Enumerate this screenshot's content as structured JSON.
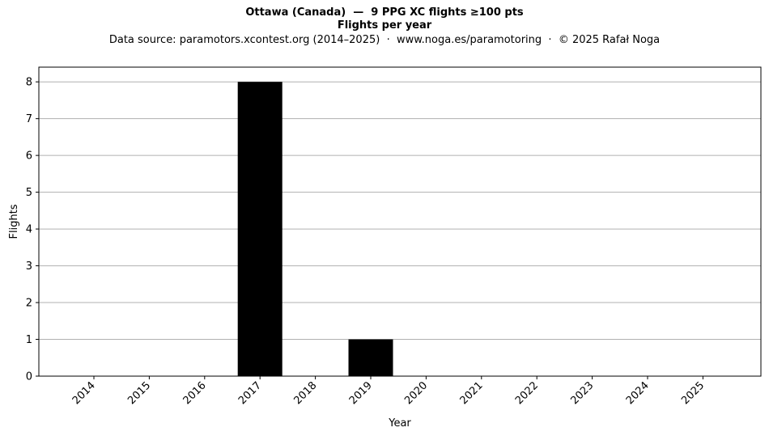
{
  "chart_data": {
    "type": "bar",
    "title": "Ottawa (Canada)  —  9 PPG XC flights ≥100 pts",
    "subtitle": "Flights per year",
    "source": "Data source: paramotors.xcontest.org (2014–2025)  ·  www.noga.es/paramotoring  ·  © 2025 Rafał Noga",
    "xlabel": "Year",
    "ylabel": "Flights",
    "categories": [
      "2014",
      "2015",
      "2016",
      "2017",
      "2018",
      "2019",
      "2020",
      "2021",
      "2022",
      "2023",
      "2024",
      "2025"
    ],
    "values": [
      0,
      0,
      0,
      8,
      0,
      1,
      0,
      0,
      0,
      0,
      0,
      0
    ],
    "yticks": [
      "0",
      "1",
      "2",
      "3",
      "4",
      "5",
      "6",
      "7",
      "8"
    ],
    "ylim": [
      0,
      8.4
    ],
    "grid": "horizontal",
    "bar_color": "#000000",
    "grid_color": "#b0b0b0"
  }
}
